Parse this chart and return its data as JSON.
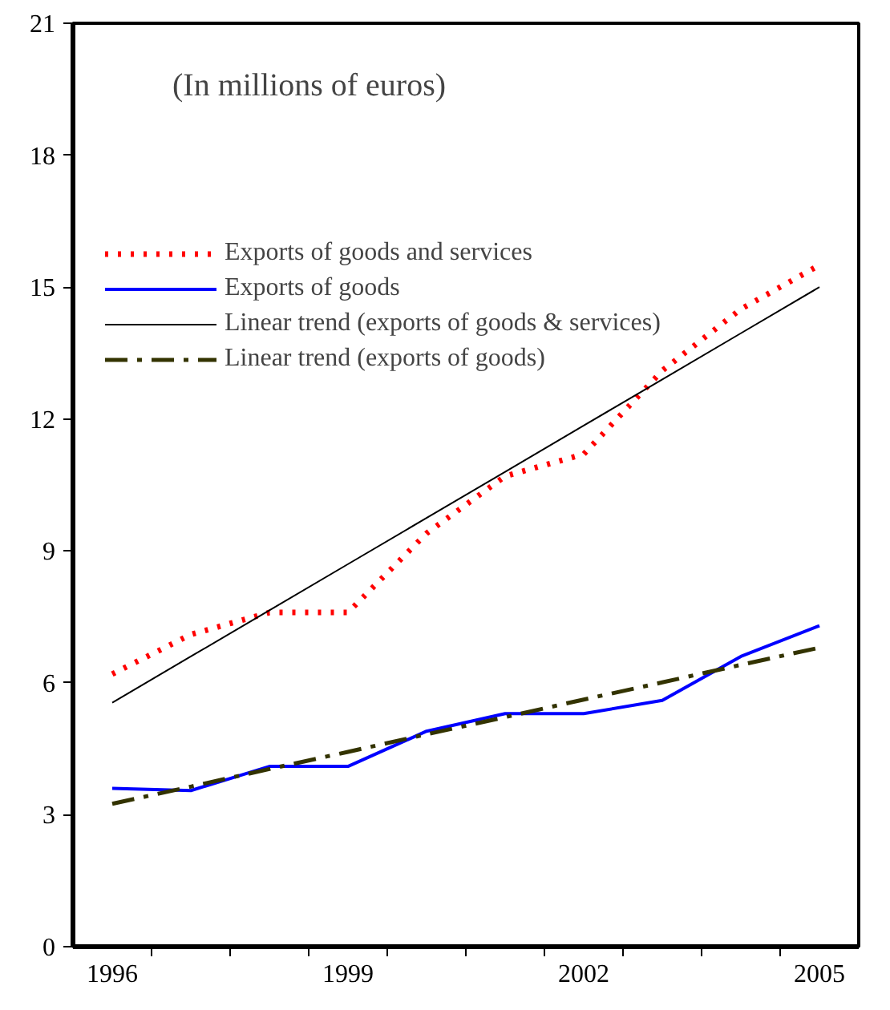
{
  "chart_data": {
    "type": "line",
    "annotations": [
      "(In millions of euros)"
    ],
    "categories": [
      "1996",
      null,
      null,
      "1999",
      null,
      null,
      "2002",
      null,
      null,
      "2005"
    ],
    "series": [
      {
        "name": "Exports of goods and services",
        "color": "#ff0000",
        "line_style": "dotted",
        "values": [
          6.2,
          7.1,
          7.6,
          7.6,
          9.4,
          10.7,
          11.2,
          13.1,
          14.5,
          15.5
        ]
      },
      {
        "name": "Exports of goods",
        "color": "#0000ff",
        "line_style": "solid",
        "values": [
          3.6,
          3.55,
          4.1,
          4.1,
          4.9,
          5.3,
          5.3,
          5.6,
          6.6,
          7.3
        ]
      },
      {
        "name": "Linear trend (exports of goods & services)",
        "color": "#000000",
        "line_style": "solid",
        "values": [
          5.55,
          6.6,
          7.65,
          8.7,
          9.75,
          10.8,
          11.85,
          12.9,
          13.95,
          15.0
        ]
      },
      {
        "name": "Linear trend (exports of goods)",
        "color": "#333300",
        "line_style": "dashdot",
        "values": [
          3.25,
          3.64,
          4.04,
          4.43,
          4.83,
          5.22,
          5.62,
          6.01,
          6.41,
          6.8
        ]
      }
    ],
    "ylim": [
      0,
      21
    ],
    "yticks": [
      0,
      3,
      6,
      9,
      12,
      15,
      18,
      21
    ],
    "grid": false,
    "legend": "top left",
    "marker": "none"
  }
}
